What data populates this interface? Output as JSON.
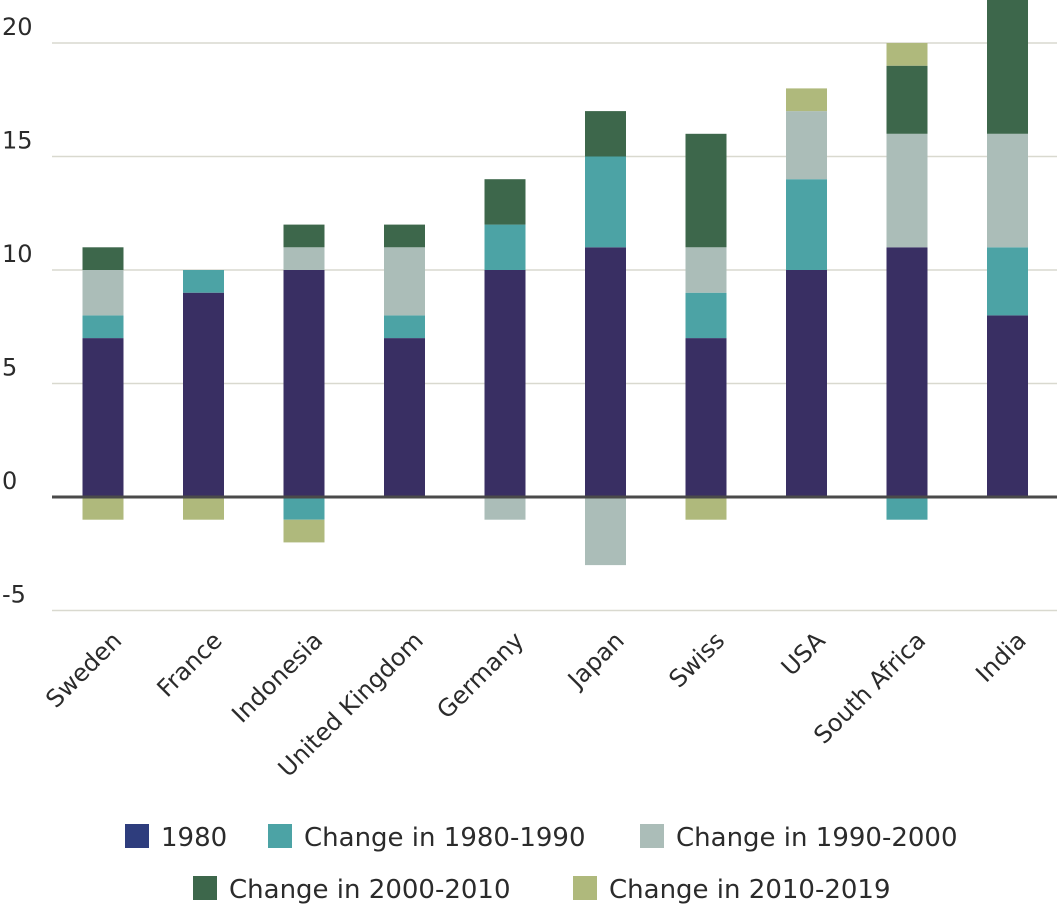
{
  "chart_data": {
    "type": "bar",
    "stacked": true,
    "title": "",
    "xlabel": "",
    "ylabel": "",
    "ylim": [
      -5,
      20
    ],
    "yticks": [
      20,
      15,
      10,
      5,
      0,
      -5
    ],
    "grid": true,
    "legend_position": "bottom",
    "categories": [
      "Sweden",
      "France",
      "Indonesia",
      "United Kingdom",
      "Germany",
      "Japan",
      "Swiss",
      "USA",
      "South Africa",
      "India"
    ],
    "series": [
      {
        "name": "1980",
        "color": "#392f63",
        "values": [
          7,
          9,
          10,
          7,
          10,
          11,
          7,
          10,
          11,
          8
        ]
      },
      {
        "name": "Change in 1980-1990",
        "color": "#4ca3a5",
        "values": [
          1,
          1,
          -1,
          1,
          2,
          4,
          2,
          4,
          -1,
          3
        ]
      },
      {
        "name": "Change in 1990-2000",
        "color": "#abbdb8",
        "values": [
          2,
          0,
          1,
          3,
          -1,
          -3,
          2,
          3,
          5,
          5
        ]
      },
      {
        "name": "Change in 2000-2010",
        "color": "#3d674b",
        "values": [
          1,
          0,
          1,
          1,
          2,
          2,
          5,
          0,
          3,
          6
        ]
      },
      {
        "name": "Change in 2010-2019",
        "color": "#afb97c",
        "values": [
          -1,
          -1,
          -1,
          0,
          0,
          0,
          -1,
          1,
          1,
          0
        ]
      }
    ],
    "legend_swatch_color_1980": "#2e3d7d"
  }
}
